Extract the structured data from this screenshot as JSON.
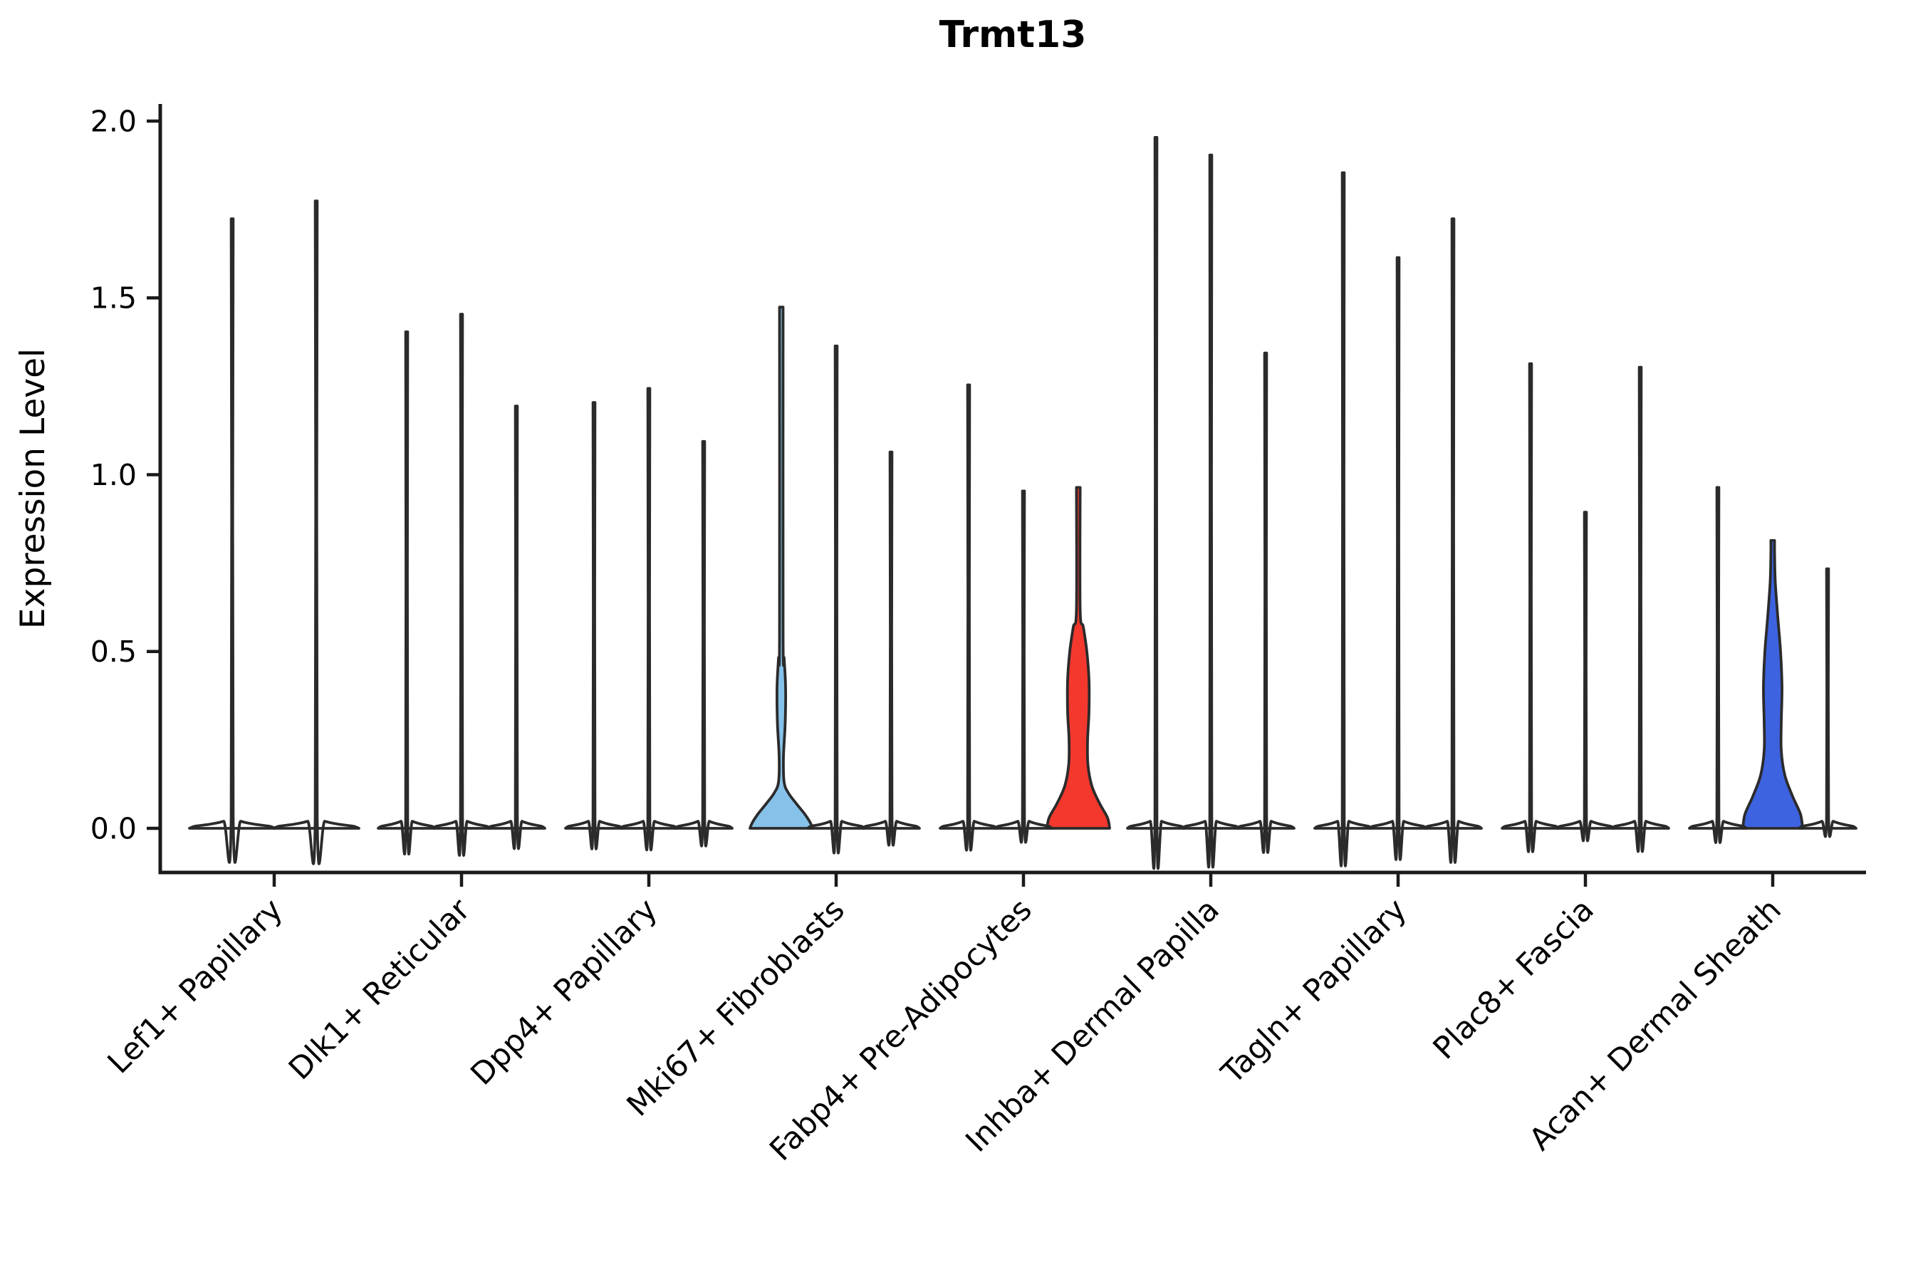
{
  "title": "Trmt13",
  "axes": {
    "ylabel": "Expression Level",
    "xlabel": ""
  },
  "chart_data": {
    "type": "violin",
    "title": "Trmt13",
    "ylabel": "Expression Level",
    "xlabel": "",
    "ylim": [
      0,
      2.0
    ],
    "yticks": [
      {
        "value": 0.0,
        "label": "0.0"
      },
      {
        "value": 0.5,
        "label": "0.5"
      },
      {
        "value": 1.0,
        "label": "1.0"
      },
      {
        "value": 1.5,
        "label": "1.5"
      },
      {
        "value": 2.0,
        "label": "2.0"
      }
    ],
    "grid": false,
    "legend": "none",
    "categories": [
      "Lef1+ Papillary",
      "Dlk1+ Reticular",
      "Dpp4+ Papillary",
      "Mki67+ Fibroblasts",
      "Fabp4+ Pre-Adipocytes",
      "Inhba+ Dermal Papilla",
      "Tagln+ Papillary",
      "Plac8+ Fascia",
      "Acan+ Dermal Sheath"
    ],
    "groups": [
      {
        "category": "Lef1+ Papillary",
        "violins": [
          {
            "max": 1.73,
            "shape": "spike_wide",
            "fill": "#ffffff"
          },
          {
            "max": 1.78,
            "shape": "spike_wide",
            "fill": "#ffffff"
          }
        ]
      },
      {
        "category": "Dlk1+ Reticular",
        "violins": [
          {
            "max": 1.41,
            "shape": "spike",
            "fill": "#ffffff"
          },
          {
            "max": 1.46,
            "shape": "spike",
            "fill": "#ffffff"
          },
          {
            "max": 1.2,
            "shape": "spike",
            "fill": "#ffffff"
          }
        ]
      },
      {
        "category": "Dpp4+ Papillary",
        "violins": [
          {
            "max": 1.21,
            "shape": "spike",
            "fill": "#ffffff"
          },
          {
            "max": 1.25,
            "shape": "spike",
            "fill": "#ffffff"
          },
          {
            "max": 1.1,
            "shape": "spike",
            "fill": "#ffffff"
          }
        ]
      },
      {
        "category": "Mki67+ Fibroblasts",
        "violins": [
          {
            "max": 1.48,
            "shape": "bell_lightblue",
            "fill": "#85C1E8"
          },
          {
            "max": 1.37,
            "shape": "spike",
            "fill": "#ffffff"
          },
          {
            "max": 1.07,
            "shape": "spike",
            "fill": "#ffffff"
          }
        ]
      },
      {
        "category": "Fabp4+ Pre-Adipocytes",
        "violins": [
          {
            "max": 1.26,
            "shape": "spike",
            "fill": "#ffffff"
          },
          {
            "max": 0.96,
            "shape": "spike",
            "fill": "#ffffff"
          },
          {
            "max": 0.97,
            "shape": "body_red",
            "fill": "#F4382E"
          }
        ]
      },
      {
        "category": "Inhba+ Dermal Papilla",
        "violins": [
          {
            "max": 1.96,
            "shape": "spike",
            "fill": "#ffffff"
          },
          {
            "max": 1.91,
            "shape": "spike",
            "fill": "#ffffff"
          },
          {
            "max": 1.35,
            "shape": "spike",
            "fill": "#ffffff"
          }
        ]
      },
      {
        "category": "Tagln+ Papillary",
        "violins": [
          {
            "max": 1.86,
            "shape": "spike",
            "fill": "#ffffff"
          },
          {
            "max": 1.62,
            "shape": "spike",
            "fill": "#ffffff"
          },
          {
            "max": 1.73,
            "shape": "spike",
            "fill": "#ffffff"
          }
        ]
      },
      {
        "category": "Plac8+ Fascia",
        "violins": [
          {
            "max": 1.32,
            "shape": "spike",
            "fill": "#ffffff"
          },
          {
            "max": 0.9,
            "shape": "spike",
            "fill": "#ffffff"
          },
          {
            "max": 1.31,
            "shape": "spike",
            "fill": "#ffffff"
          }
        ]
      },
      {
        "category": "Acan+ Dermal Sheath",
        "violins": [
          {
            "max": 0.97,
            "shape": "spike",
            "fill": "#ffffff"
          },
          {
            "max": 0.82,
            "shape": "body_blue",
            "fill": "#3E63E0"
          },
          {
            "max": 0.74,
            "shape": "spike",
            "fill": "#ffffff"
          }
        ]
      }
    ],
    "violin_profiles": {
      "spike": [
        [
          0,
          40
        ],
        [
          0.006,
          35
        ],
        [
          0.012,
          20
        ],
        [
          0.02,
          8
        ],
        [
          0.032,
          1.4
        ]
      ],
      "spike_wide": [
        [
          0,
          60
        ],
        [
          0.006,
          52
        ],
        [
          0.012,
          30
        ],
        [
          0.02,
          12
        ],
        [
          0.032,
          1.4
        ]
      ],
      "bell_lightblue": [
        [
          0,
          44
        ],
        [
          0.015,
          41
        ],
        [
          0.04,
          33
        ],
        [
          0.07,
          21
        ],
        [
          0.1,
          10
        ],
        [
          0.13,
          4
        ],
        [
          0.2,
          3
        ],
        [
          0.3,
          5.5
        ],
        [
          0.4,
          6
        ],
        [
          0.48,
          4
        ],
        [
          0.55,
          2.5
        ]
      ],
      "body_red": [
        [
          0,
          44
        ],
        [
          0.03,
          41
        ],
        [
          0.07,
          30
        ],
        [
          0.12,
          19
        ],
        [
          0.18,
          13.5
        ],
        [
          0.25,
          13
        ],
        [
          0.33,
          15
        ],
        [
          0.42,
          15
        ],
        [
          0.5,
          12
        ],
        [
          0.57,
          7
        ],
        [
          0.62,
          2.6
        ]
      ],
      "body_blue": [
        [
          0,
          42
        ],
        [
          0.04,
          39
        ],
        [
          0.09,
          28
        ],
        [
          0.15,
          17
        ],
        [
          0.22,
          12
        ],
        [
          0.3,
          12
        ],
        [
          0.4,
          13
        ],
        [
          0.5,
          11
        ],
        [
          0.6,
          7
        ],
        [
          0.7,
          3.5
        ],
        [
          0.78,
          2.6
        ]
      ]
    },
    "colors": {
      "outline": "#2b2b2b",
      "spine": "#1a1a1a",
      "white_fill": "#ffffff",
      "highlight_lightblue": "#85C1E8",
      "highlight_red": "#F4382E",
      "highlight_blue": "#3E63E0"
    }
  }
}
